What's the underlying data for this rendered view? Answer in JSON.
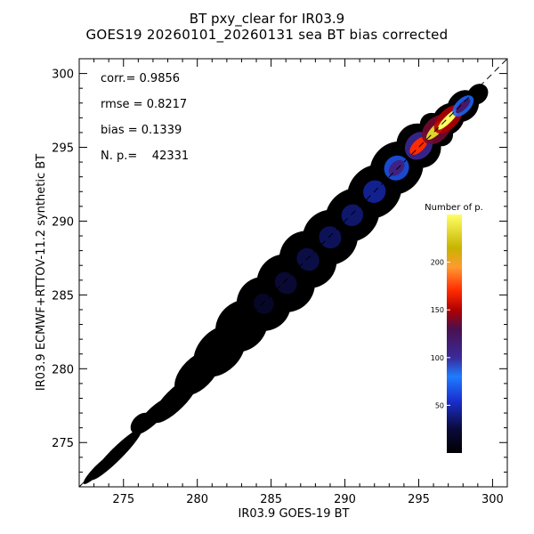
{
  "chart_data": {
    "type": "heatmap",
    "title": "BT pxy_clear for IR03.9",
    "subtitle": "GOES19 20260101_20260131 sea BT bias corrected",
    "xlabel": "IR03.9 GOES-19 BT",
    "ylabel": "IR03.9 ECMWF+RTTOV-11.2 synthetic BT",
    "xlim": [
      272,
      301
    ],
    "ylim": [
      272,
      301
    ],
    "x_ticks": [
      275,
      280,
      285,
      290,
      295,
      300
    ],
    "y_ticks": [
      275,
      280,
      285,
      290,
      295,
      300
    ],
    "reference_line": "y = x (dashed)",
    "stats": [
      {
        "label": "corr.= 0.9856"
      },
      {
        "label": "rmse = 0.8217"
      },
      {
        "label": "bias = 0.1339"
      },
      {
        "label": "N. p.=    42331"
      }
    ],
    "colorbar": {
      "title": "Number of p.",
      "range": [
        0,
        250
      ],
      "ticks": [
        50,
        100,
        150,
        200
      ]
    },
    "density_ridge": [
      {
        "x": 273.3,
        "y": 273.2,
        "width": 0.4,
        "count": 2
      },
      {
        "x": 274.5,
        "y": 274.2,
        "width": 0.6,
        "count": 3
      },
      {
        "x": 276.2,
        "y": 276.3,
        "width": 0.8,
        "count": 4
      },
      {
        "x": 277.0,
        "y": 276.8,
        "width": 0.7,
        "count": 4
      },
      {
        "x": 278.5,
        "y": 277.9,
        "width": 1.0,
        "count": 6
      },
      {
        "x": 280.0,
        "y": 279.7,
        "width": 1.5,
        "count": 12
      },
      {
        "x": 281.5,
        "y": 281.2,
        "width": 2.0,
        "count": 18
      },
      {
        "x": 283.0,
        "y": 282.9,
        "width": 2.3,
        "count": 24
      },
      {
        "x": 284.5,
        "y": 284.4,
        "width": 2.6,
        "count": 30
      },
      {
        "x": 286.0,
        "y": 285.8,
        "width": 2.8,
        "count": 40
      },
      {
        "x": 287.5,
        "y": 287.4,
        "width": 2.8,
        "count": 48
      },
      {
        "x": 289.0,
        "y": 288.9,
        "width": 2.6,
        "count": 55
      },
      {
        "x": 290.5,
        "y": 290.4,
        "width": 2.4,
        "count": 62
      },
      {
        "x": 292.0,
        "y": 292.0,
        "width": 2.4,
        "count": 75
      },
      {
        "x": 293.5,
        "y": 293.6,
        "width": 2.4,
        "count": 110
      },
      {
        "x": 295.0,
        "y": 295.1,
        "width": 2.2,
        "count": 170
      },
      {
        "x": 296.2,
        "y": 296.2,
        "width": 1.8,
        "count": 230
      },
      {
        "x": 297.0,
        "y": 296.9,
        "width": 1.4,
        "count": 250
      },
      {
        "x": 298.0,
        "y": 297.8,
        "width": 1.4,
        "count": 120
      },
      {
        "x": 299.0,
        "y": 298.6,
        "width": 0.9,
        "count": 20
      }
    ]
  }
}
